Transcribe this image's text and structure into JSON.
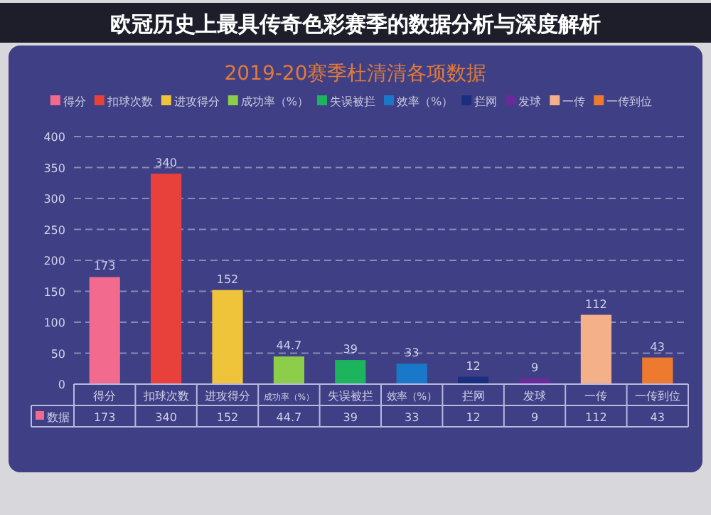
{
  "chart_data": {
    "type": "bar",
    "title": "2019-20赛季杜清清各项数据",
    "subtitle": "欧冠历史上最具传奇色彩赛季的数据分析与深度解析",
    "categories": [
      "得分",
      "扣球次数",
      "进攻得分",
      "成功率（%）",
      "失误被拦",
      "效率（%）",
      "拦网",
      "发球",
      "一传",
      "一传到位"
    ],
    "series": [
      {
        "name": "得分",
        "color": "#f26a8e",
        "values": [
          173,
          null,
          null,
          null,
          null,
          null,
          null,
          null,
          null,
          null
        ],
        "value_labels": [
          "173",
          null,
          null,
          null,
          null,
          null,
          null,
          null,
          null,
          null
        ]
      },
      {
        "name": "扣球次数",
        "color": "#e8413c",
        "values": [
          null,
          340,
          null,
          null,
          null,
          null,
          null,
          null,
          null,
          null
        ],
        "value_labels": [
          null,
          "340",
          null,
          null,
          null,
          null,
          null,
          null,
          null,
          null
        ]
      },
      {
        "name": "进攻得分",
        "color": "#f0c43a",
        "values": [
          null,
          null,
          152,
          null,
          null,
          null,
          null,
          null,
          null,
          null
        ],
        "value_labels": [
          null,
          null,
          "152",
          null,
          null,
          null,
          null,
          null,
          null,
          null
        ]
      },
      {
        "name": "成功率（%）",
        "color": "#8ccd4a",
        "values": [
          null,
          null,
          null,
          44.7,
          null,
          null,
          null,
          null,
          null,
          null
        ],
        "value_labels": [
          null,
          null,
          null,
          "44.7",
          null,
          null,
          null,
          null,
          null,
          null
        ]
      },
      {
        "name": "失误被拦",
        "color": "#1cb45c",
        "values": [
          null,
          null,
          null,
          null,
          39,
          null,
          null,
          null,
          null,
          null
        ],
        "value_labels": [
          null,
          null,
          null,
          null,
          "39",
          null,
          null,
          null,
          null,
          null
        ]
      },
      {
        "name": "效率（%）",
        "color": "#1a78c8",
        "values": [
          null,
          null,
          null,
          null,
          null,
          33,
          null,
          null,
          null,
          null
        ],
        "value_labels": [
          null,
          null,
          null,
          null,
          null,
          "33",
          null,
          null,
          null,
          null
        ]
      },
      {
        "name": "拦网",
        "color": "#1c2f7e",
        "values": [
          null,
          null,
          null,
          null,
          null,
          null,
          12,
          null,
          null,
          null
        ],
        "value_labels": [
          null,
          null,
          null,
          null,
          null,
          null,
          "12",
          null,
          null,
          null
        ]
      },
      {
        "name": "发球",
        "color": "#6a2a9a",
        "values": [
          null,
          null,
          null,
          null,
          null,
          null,
          null,
          9,
          null,
          null
        ],
        "value_labels": [
          null,
          null,
          null,
          null,
          null,
          null,
          null,
          "9",
          null,
          null
        ]
      },
      {
        "name": "一传",
        "color": "#f4b088",
        "values": [
          null,
          null,
          null,
          null,
          null,
          null,
          null,
          null,
          112,
          null
        ],
        "value_labels": [
          null,
          null,
          null,
          null,
          null,
          null,
          null,
          null,
          "112",
          null
        ]
      },
      {
        "name": "一传到位",
        "color": "#ee7a30",
        "values": [
          null,
          null,
          null,
          null,
          null,
          null,
          null,
          null,
          null,
          43
        ],
        "value_labels": [
          null,
          null,
          null,
          null,
          null,
          null,
          null,
          null,
          null,
          "43"
        ]
      }
    ],
    "annotations": [
      "数据"
    ],
    "ylim": [
      0,
      400
    ],
    "yticks": [
      0,
      50,
      100,
      150,
      200,
      250,
      300,
      350,
      400
    ],
    "grid": "y",
    "legend": "top"
  }
}
